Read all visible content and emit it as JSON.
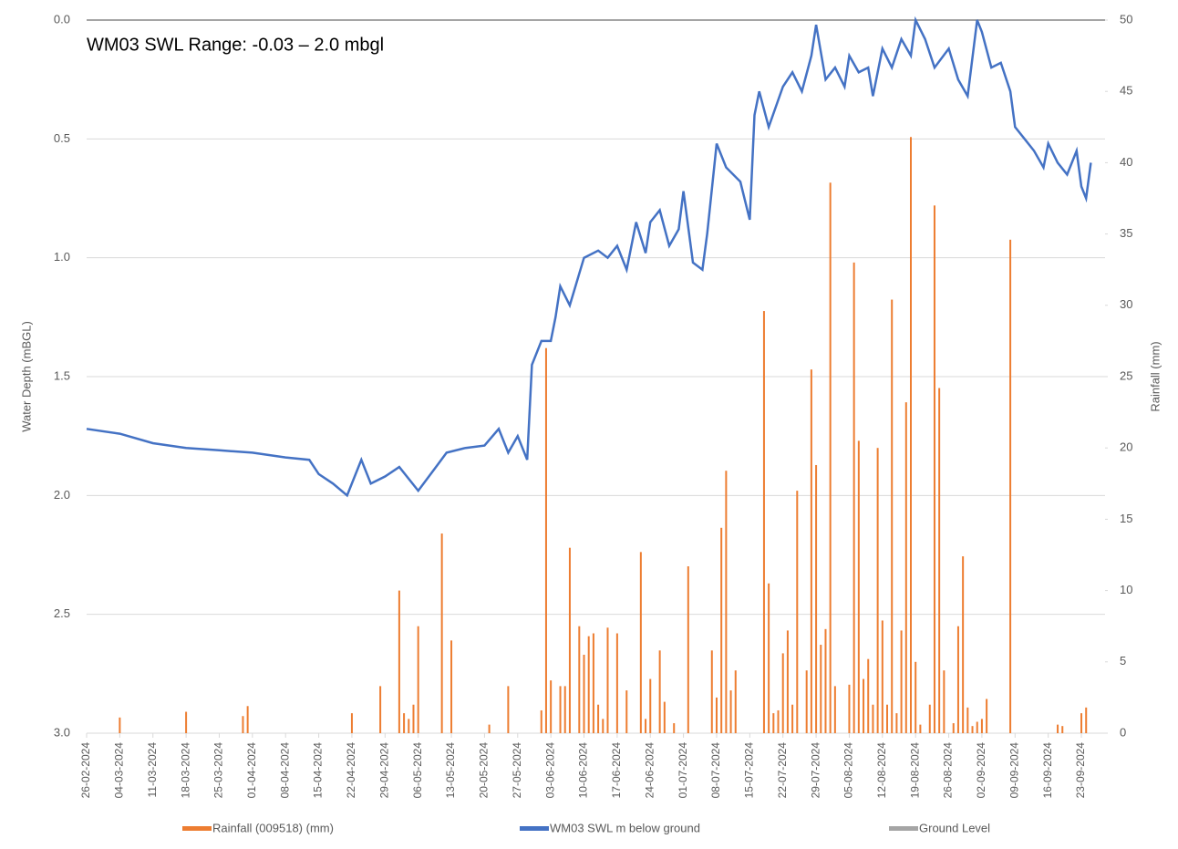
{
  "chart_data": {
    "type": "combo",
    "title": "WM03 SWL Range: -0.03 – 2.0 mbgl",
    "y_label": "Water Depth (mBGL)",
    "y2_label": "Rainfall (mm)",
    "ylim": [
      0,
      3
    ],
    "y_inverted": true,
    "yticks": [
      {
        "value": 0,
        "label": "0.0"
      },
      {
        "value": 0.5,
        "label": "0.5"
      },
      {
        "value": 1,
        "label": "1.0"
      },
      {
        "value": 1.5,
        "label": "1.5"
      },
      {
        "value": 2,
        "label": "2.0"
      },
      {
        "value": 2.5,
        "label": "2.5"
      },
      {
        "value": 3,
        "label": "3.0"
      }
    ],
    "y2lim": [
      0,
      50
    ],
    "y2ticks": [
      0,
      5,
      10,
      15,
      20,
      25,
      30,
      35,
      40,
      45,
      50
    ],
    "grid": true,
    "legend": "bottom",
    "xlim": [
      "26-02-2024",
      "28-09-2024"
    ],
    "xticks": [
      "26-02-2024",
      "04-03-2024",
      "11-03-2024",
      "18-03-2024",
      "25-03-2024",
      "01-04-2024",
      "08-04-2024",
      "15-04-2024",
      "22-04-2024",
      "29-04-2024",
      "06-05-2024",
      "13-05-2024",
      "20-05-2024",
      "27-05-2024",
      "03-06-2024",
      "10-06-2024",
      "17-06-2024",
      "24-06-2024",
      "01-07-2024",
      "08-07-2024",
      "15-07-2024",
      "22-07-2024",
      "29-07-2024",
      "05-08-2024",
      "12-08-2024",
      "19-08-2024",
      "26-08-2024",
      "02-09-2024",
      "09-09-2024",
      "16-09-2024",
      "23-09-2024"
    ],
    "series": [
      {
        "name": "Rainfall (009518) (mm)",
        "type": "bar",
        "axis": "y2",
        "color": "#ed7d31",
        "x": [
          "04-03-2024",
          "18-03-2024",
          "30-03-2024",
          "31-03-2024",
          "22-04-2024",
          "28-04-2024",
          "02-05-2024",
          "03-05-2024",
          "04-05-2024",
          "05-05-2024",
          "06-05-2024",
          "11-05-2024",
          "13-05-2024",
          "21-05-2024",
          "25-05-2024",
          "01-06-2024",
          "02-06-2024",
          "03-06-2024",
          "05-06-2024",
          "06-06-2024",
          "07-06-2024",
          "09-06-2024",
          "10-06-2024",
          "11-06-2024",
          "12-06-2024",
          "13-06-2024",
          "14-06-2024",
          "15-06-2024",
          "17-06-2024",
          "19-06-2024",
          "22-06-2024",
          "23-06-2024",
          "24-06-2024",
          "26-06-2024",
          "27-06-2024",
          "29-06-2024",
          "02-07-2024",
          "07-07-2024",
          "08-07-2024",
          "09-07-2024",
          "10-07-2024",
          "11-07-2024",
          "12-07-2024",
          "18-07-2024",
          "19-07-2024",
          "20-07-2024",
          "21-07-2024",
          "22-07-2024",
          "23-07-2024",
          "24-07-2024",
          "25-07-2024",
          "27-07-2024",
          "28-07-2024",
          "29-07-2024",
          "30-07-2024",
          "31-07-2024",
          "01-08-2024",
          "02-08-2024",
          "05-08-2024",
          "06-08-2024",
          "07-08-2024",
          "08-08-2024",
          "09-08-2024",
          "10-08-2024",
          "11-08-2024",
          "12-08-2024",
          "13-08-2024",
          "14-08-2024",
          "15-08-2024",
          "16-08-2024",
          "17-08-2024",
          "18-08-2024",
          "19-08-2024",
          "20-08-2024",
          "22-08-2024",
          "23-08-2024",
          "24-08-2024",
          "25-08-2024",
          "27-08-2024",
          "28-08-2024",
          "29-08-2024",
          "30-08-2024",
          "31-08-2024",
          "01-09-2024",
          "02-09-2024",
          "03-09-2024",
          "08-09-2024",
          "18-09-2024",
          "19-09-2024",
          "23-09-2024",
          "24-09-2024"
        ],
        "values": [
          1.1,
          1.5,
          1.2,
          1.9,
          1.4,
          3.3,
          10,
          1.4,
          1.0,
          2.0,
          7.5,
          14,
          6.5,
          0.6,
          3.3,
          1.6,
          27,
          3.7,
          3.3,
          3.3,
          13,
          7.5,
          5.5,
          6.8,
          7,
          2,
          1,
          7.4,
          7,
          3,
          12.7,
          1,
          3.8,
          5.8,
          2.2,
          0.7,
          11.7,
          5.8,
          2.5,
          14.4,
          18.4,
          3.0,
          4.4,
          29.6,
          10.5,
          1.4,
          1.6,
          5.6,
          7.2,
          2.0,
          17,
          4.4,
          25.5,
          18.8,
          6.2,
          7.3,
          38.6,
          3.3,
          3.4,
          33,
          20.5,
          3.8,
          5.2,
          2,
          20,
          7.9,
          2.0,
          30.4,
          1.4,
          7.2,
          23.2,
          41.8,
          5.0,
          0.6,
          2.0,
          37,
          24.2,
          4.4,
          0.7,
          7.5,
          12.4,
          1.8,
          0.5,
          0.8,
          1.0,
          2.4,
          34.6,
          0.6,
          0.5,
          1.4,
          1.8
        ]
      },
      {
        "name": "WM03 SWL m below ground",
        "type": "line",
        "color": "#4472c4",
        "x": [
          "26-02-2024",
          "04-03-2024",
          "11-03-2024",
          "18-03-2024",
          "25-03-2024",
          "01-04-2024",
          "08-04-2024",
          "13-04-2024",
          "15-04-2024",
          "18-04-2024",
          "21-04-2024",
          "24-04-2024",
          "26-04-2024",
          "29-04-2024",
          "02-05-2024",
          "06-05-2024",
          "09-05-2024",
          "12-05-2024",
          "16-05-2024",
          "20-05-2024",
          "23-05-2024",
          "25-05-2024",
          "27-05-2024",
          "29-05-2024",
          "30-05-2024",
          "01-06-2024",
          "03-06-2024",
          "04-06-2024",
          "05-06-2024",
          "07-06-2024",
          "10-06-2024",
          "13-06-2024",
          "15-06-2024",
          "17-06-2024",
          "19-06-2024",
          "21-06-2024",
          "23-06-2024",
          "24-06-2024",
          "26-06-2024",
          "28-06-2024",
          "30-06-2024",
          "01-07-2024",
          "03-07-2024",
          "05-07-2024",
          "06-07-2024",
          "08-07-2024",
          "10-07-2024",
          "13-07-2024",
          "15-07-2024",
          "16-07-2024",
          "17-07-2024",
          "19-07-2024",
          "22-07-2024",
          "24-07-2024",
          "26-07-2024",
          "28-07-2024",
          "29-07-2024",
          "31-07-2024",
          "02-08-2024",
          "04-08-2024",
          "05-08-2024",
          "07-08-2024",
          "09-08-2024",
          "10-08-2024",
          "12-08-2024",
          "14-08-2024",
          "16-08-2024",
          "18-08-2024",
          "19-08-2024",
          "21-08-2024",
          "23-08-2024",
          "26-08-2024",
          "28-08-2024",
          "30-08-2024",
          "01-09-2024",
          "02-09-2024",
          "04-09-2024",
          "06-09-2024",
          "08-09-2024",
          "09-09-2024",
          "11-09-2024",
          "13-09-2024",
          "15-09-2024",
          "16-09-2024",
          "18-09-2024",
          "20-09-2024",
          "22-09-2024",
          "23-09-2024",
          "24-09-2024",
          "25-09-2024"
        ],
        "values": [
          1.72,
          1.74,
          1.78,
          1.8,
          1.81,
          1.82,
          1.84,
          1.85,
          1.91,
          1.95,
          2.0,
          1.85,
          1.95,
          1.92,
          1.88,
          1.98,
          1.9,
          1.82,
          1.8,
          1.79,
          1.72,
          1.82,
          1.75,
          1.85,
          1.45,
          1.35,
          1.35,
          1.25,
          1.12,
          1.2,
          1.0,
          0.97,
          1.0,
          0.95,
          1.05,
          0.85,
          0.98,
          0.85,
          0.8,
          0.95,
          0.88,
          0.72,
          1.02,
          1.05,
          0.9,
          0.52,
          0.62,
          0.68,
          0.84,
          0.4,
          0.3,
          0.45,
          0.28,
          0.22,
          0.3,
          0.15,
          0.02,
          0.25,
          0.2,
          0.28,
          0.15,
          0.22,
          0.2,
          0.32,
          0.12,
          0.2,
          0.08,
          0.15,
          0.0,
          0.08,
          0.2,
          0.12,
          0.25,
          0.32,
          0.0,
          0.05,
          0.2,
          0.18,
          0.3,
          0.45,
          0.5,
          0.55,
          0.62,
          0.52,
          0.6,
          0.65,
          0.55,
          0.7,
          0.75,
          0.6
        ]
      },
      {
        "name": "Ground Level",
        "type": "line",
        "color": "#a5a5a5",
        "x": [
          "26-02-2024",
          "28-09-2024"
        ],
        "values": [
          0,
          0
        ]
      }
    ]
  }
}
